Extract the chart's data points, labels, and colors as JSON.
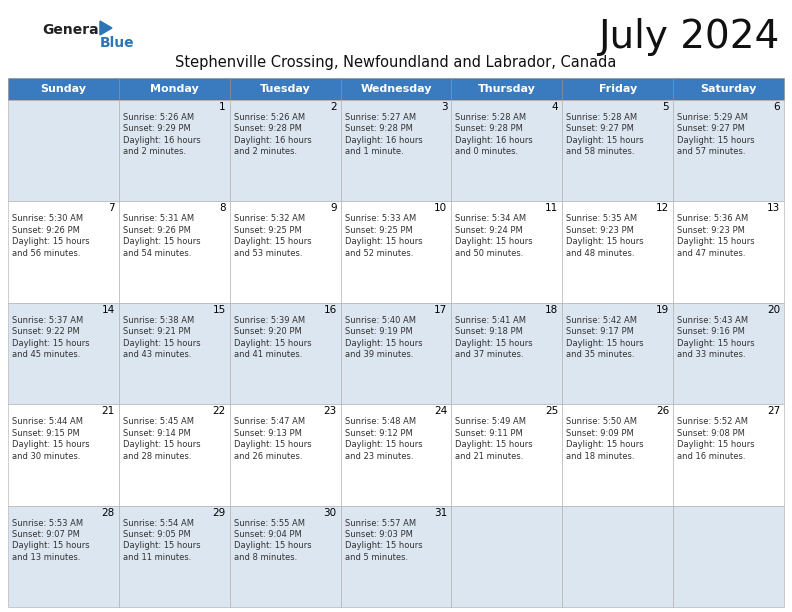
{
  "title": "July 2024",
  "subtitle": "Stephenville Crossing, Newfoundland and Labrador, Canada",
  "days_of_week": [
    "Sunday",
    "Monday",
    "Tuesday",
    "Wednesday",
    "Thursday",
    "Friday",
    "Saturday"
  ],
  "header_bg": "#3a7abf",
  "header_text": "#ffffff",
  "row_bg_even": "#dce6f1",
  "row_bg_odd": "#ffffff",
  "border_color": "#aaaaaa",
  "title_color": "#111111",
  "subtitle_color": "#111111",
  "day_num_color": "#000000",
  "cell_text_color": "#333333",
  "logo_general_color": "#222222",
  "logo_blue_color": "#2e75b6",
  "logo_triangle_color": "#2e75b6",
  "weeks": [
    [
      {
        "day": null,
        "text": ""
      },
      {
        "day": 1,
        "text": "Sunrise: 5:26 AM\nSunset: 9:29 PM\nDaylight: 16 hours\nand 2 minutes."
      },
      {
        "day": 2,
        "text": "Sunrise: 5:26 AM\nSunset: 9:28 PM\nDaylight: 16 hours\nand 2 minutes."
      },
      {
        "day": 3,
        "text": "Sunrise: 5:27 AM\nSunset: 9:28 PM\nDaylight: 16 hours\nand 1 minute."
      },
      {
        "day": 4,
        "text": "Sunrise: 5:28 AM\nSunset: 9:28 PM\nDaylight: 16 hours\nand 0 minutes."
      },
      {
        "day": 5,
        "text": "Sunrise: 5:28 AM\nSunset: 9:27 PM\nDaylight: 15 hours\nand 58 minutes."
      },
      {
        "day": 6,
        "text": "Sunrise: 5:29 AM\nSunset: 9:27 PM\nDaylight: 15 hours\nand 57 minutes."
      }
    ],
    [
      {
        "day": 7,
        "text": "Sunrise: 5:30 AM\nSunset: 9:26 PM\nDaylight: 15 hours\nand 56 minutes."
      },
      {
        "day": 8,
        "text": "Sunrise: 5:31 AM\nSunset: 9:26 PM\nDaylight: 15 hours\nand 54 minutes."
      },
      {
        "day": 9,
        "text": "Sunrise: 5:32 AM\nSunset: 9:25 PM\nDaylight: 15 hours\nand 53 minutes."
      },
      {
        "day": 10,
        "text": "Sunrise: 5:33 AM\nSunset: 9:25 PM\nDaylight: 15 hours\nand 52 minutes."
      },
      {
        "day": 11,
        "text": "Sunrise: 5:34 AM\nSunset: 9:24 PM\nDaylight: 15 hours\nand 50 minutes."
      },
      {
        "day": 12,
        "text": "Sunrise: 5:35 AM\nSunset: 9:23 PM\nDaylight: 15 hours\nand 48 minutes."
      },
      {
        "day": 13,
        "text": "Sunrise: 5:36 AM\nSunset: 9:23 PM\nDaylight: 15 hours\nand 47 minutes."
      }
    ],
    [
      {
        "day": 14,
        "text": "Sunrise: 5:37 AM\nSunset: 9:22 PM\nDaylight: 15 hours\nand 45 minutes."
      },
      {
        "day": 15,
        "text": "Sunrise: 5:38 AM\nSunset: 9:21 PM\nDaylight: 15 hours\nand 43 minutes."
      },
      {
        "day": 16,
        "text": "Sunrise: 5:39 AM\nSunset: 9:20 PM\nDaylight: 15 hours\nand 41 minutes."
      },
      {
        "day": 17,
        "text": "Sunrise: 5:40 AM\nSunset: 9:19 PM\nDaylight: 15 hours\nand 39 minutes."
      },
      {
        "day": 18,
        "text": "Sunrise: 5:41 AM\nSunset: 9:18 PM\nDaylight: 15 hours\nand 37 minutes."
      },
      {
        "day": 19,
        "text": "Sunrise: 5:42 AM\nSunset: 9:17 PM\nDaylight: 15 hours\nand 35 minutes."
      },
      {
        "day": 20,
        "text": "Sunrise: 5:43 AM\nSunset: 9:16 PM\nDaylight: 15 hours\nand 33 minutes."
      }
    ],
    [
      {
        "day": 21,
        "text": "Sunrise: 5:44 AM\nSunset: 9:15 PM\nDaylight: 15 hours\nand 30 minutes."
      },
      {
        "day": 22,
        "text": "Sunrise: 5:45 AM\nSunset: 9:14 PM\nDaylight: 15 hours\nand 28 minutes."
      },
      {
        "day": 23,
        "text": "Sunrise: 5:47 AM\nSunset: 9:13 PM\nDaylight: 15 hours\nand 26 minutes."
      },
      {
        "day": 24,
        "text": "Sunrise: 5:48 AM\nSunset: 9:12 PM\nDaylight: 15 hours\nand 23 minutes."
      },
      {
        "day": 25,
        "text": "Sunrise: 5:49 AM\nSunset: 9:11 PM\nDaylight: 15 hours\nand 21 minutes."
      },
      {
        "day": 26,
        "text": "Sunrise: 5:50 AM\nSunset: 9:09 PM\nDaylight: 15 hours\nand 18 minutes."
      },
      {
        "day": 27,
        "text": "Sunrise: 5:52 AM\nSunset: 9:08 PM\nDaylight: 15 hours\nand 16 minutes."
      }
    ],
    [
      {
        "day": 28,
        "text": "Sunrise: 5:53 AM\nSunset: 9:07 PM\nDaylight: 15 hours\nand 13 minutes."
      },
      {
        "day": 29,
        "text": "Sunrise: 5:54 AM\nSunset: 9:05 PM\nDaylight: 15 hours\nand 11 minutes."
      },
      {
        "day": 30,
        "text": "Sunrise: 5:55 AM\nSunset: 9:04 PM\nDaylight: 15 hours\nand 8 minutes."
      },
      {
        "day": 31,
        "text": "Sunrise: 5:57 AM\nSunset: 9:03 PM\nDaylight: 15 hours\nand 5 minutes."
      },
      {
        "day": null,
        "text": ""
      },
      {
        "day": null,
        "text": ""
      },
      {
        "day": null,
        "text": ""
      }
    ]
  ]
}
